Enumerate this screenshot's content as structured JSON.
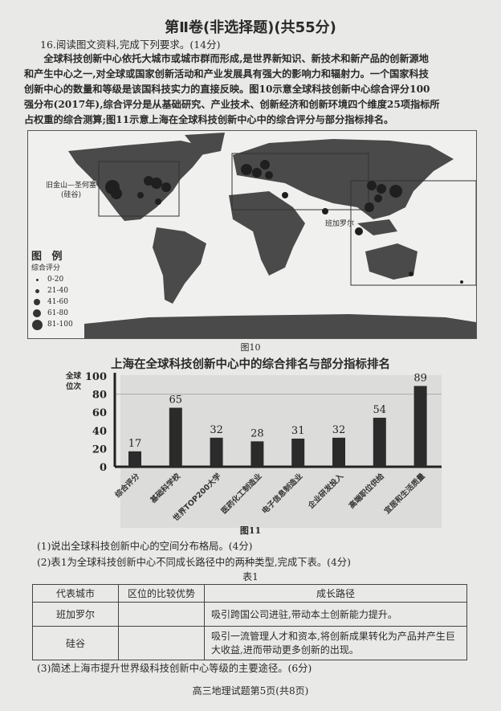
{
  "section_title": "第Ⅱ卷(非选择题)(共55分)",
  "question16": {
    "heading": "16.阅读图文资料,完成下列要求。(14分)",
    "paragraph_lines": [
      "　　全球科技创新中心依托大城市或城市群而形成,是世界新知识、新技术和新产品的创新源地",
      "和产生中心之一,对全球或国家创新活动和产业发展具有强大的影响力和辐射力。一个国家科技",
      "创新中心的数量和等级是该国科技实力的直接反映。图10示意全球科技创新中心综合评分100",
      "强分布(2017年),综合评分是从基础研究、产业技术、创新经济和创新环境四个维度25项指标所",
      "占权重的综合测算;图11示意上海在全球科技创新中心中的综合评分与部分指标排名。"
    ]
  },
  "map": {
    "caption": "图10",
    "labels": {
      "sf": "旧金山—圣何塞",
      "sf_sub": "(硅谷)",
      "bangalore": "班加罗尔"
    },
    "legend": {
      "title": "图 例",
      "subtitle": "综合评分",
      "items": [
        "0-20",
        "21-40",
        "41-60",
        "61-80",
        "81-100"
      ]
    }
  },
  "chart_data": {
    "type": "bar",
    "title": "上海在全球科技创新中心中的综合排名与部分指标排名",
    "ylabel": "全球位次",
    "ylim": [
      0,
      100
    ],
    "yticks": [
      0,
      20,
      40,
      60,
      80,
      100
    ],
    "grid": false,
    "categories": [
      "综合评分",
      "基础科学校",
      "世界TOP200大学",
      "医药化工制造业",
      "电子信息制造业",
      "企业研发投入",
      "高端职位供给",
      "宜居和生活质量"
    ],
    "values": [
      17,
      65,
      32,
      28,
      31,
      32,
      54,
      89
    ],
    "caption": "图11",
    "bar_color": "#2b2b2b"
  },
  "questions": {
    "q1": "(1)说出全球科技创新中心的空间分布格局。(4分)",
    "q2": "(2)表1为全球科技创新中心不同成长路径中的两种类型,完成下表。(4分)",
    "q3": "(3)简述上海市提升世界级科技创新中心等级的主要途径。(6分)"
  },
  "table1": {
    "caption": "表1",
    "headers": [
      "代表城市",
      "区位的比较优势",
      "成长路径"
    ],
    "rows": [
      [
        "班加罗尔",
        "",
        "吸引跨国公司进驻,带动本土创新能力提升。"
      ],
      [
        "硅谷",
        "",
        "吸引一流管理人才和资本,将创新成果转化为产品并产生巨大收益,进而带动更多创新的出现。"
      ]
    ]
  },
  "footer": "高三地理试题第5页(共8页)"
}
